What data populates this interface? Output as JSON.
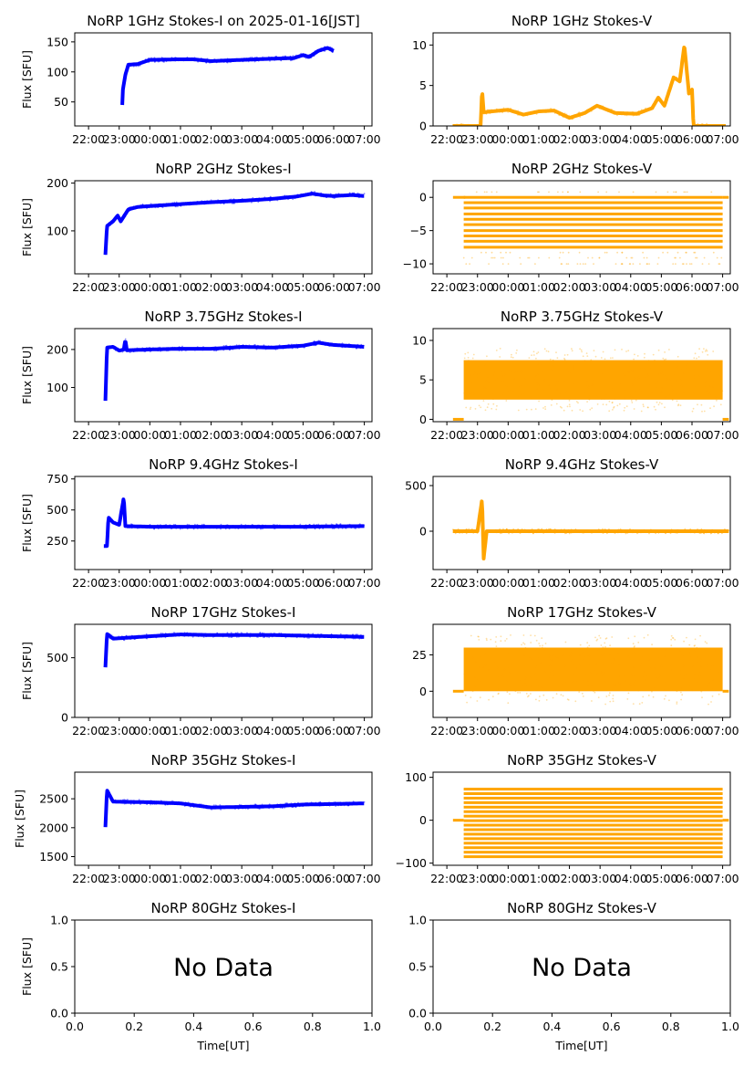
{
  "figure": {
    "x_time_ticks": [
      "22:00",
      "23:00",
      "00:00",
      "01:00",
      "02:00",
      "03:00",
      "04:00",
      "05:00",
      "06:00",
      "07:00"
    ],
    "ylabel": "Flux [SFU]",
    "xlabel_empty_panels": "Time[UT]",
    "no_data_text": "No Data",
    "colors": {
      "stokes_i": "#0000ff",
      "stokes_v": "#ffa500"
    }
  },
  "chart_data": [
    {
      "id": "1ghz-i",
      "type": "scatter",
      "title": "NoRP 1GHz Stokes-I on 2025-01-16[JST]",
      "ylabel": "Flux [SFU]",
      "xlim": [
        21.55,
        31.25
      ],
      "ylim": [
        10,
        165
      ],
      "yticks": [
        50,
        100,
        150
      ],
      "x_range_hours": [
        23.1,
        30.0
      ],
      "series": [
        {
          "name": "Stokes-I",
          "points": [
            [
              23.1,
              45
            ],
            [
              23.12,
              70
            ],
            [
              23.2,
              95
            ],
            [
              23.3,
              112
            ],
            [
              23.6,
              113
            ],
            [
              24.0,
              120
            ],
            [
              25.0,
              121
            ],
            [
              25.4,
              121
            ],
            [
              26.0,
              118
            ],
            [
              27.0,
              120
            ],
            [
              28.0,
              122
            ],
            [
              28.7,
              123
            ],
            [
              29.0,
              128
            ],
            [
              29.2,
              125
            ],
            [
              29.5,
              135
            ],
            [
              29.8,
              140
            ],
            [
              30.0,
              135
            ]
          ]
        }
      ]
    },
    {
      "id": "1ghz-v",
      "type": "scatter",
      "title": "NoRP 1GHz Stokes-V",
      "xlim": [
        21.55,
        31.25
      ],
      "ylim": [
        0,
        11.5
      ],
      "yticks": [
        0,
        5,
        10
      ],
      "series": [
        {
          "name": "Stokes-V",
          "points": [
            [
              22.2,
              0
            ],
            [
              23.1,
              0
            ],
            [
              23.15,
              4.5
            ],
            [
              23.2,
              1.7
            ],
            [
              24.0,
              2.0
            ],
            [
              24.5,
              1.4
            ],
            [
              25.0,
              1.8
            ],
            [
              25.5,
              1.9
            ],
            [
              26.0,
              1.0
            ],
            [
              26.5,
              1.6
            ],
            [
              26.9,
              2.5
            ],
            [
              27.5,
              1.6
            ],
            [
              28.2,
              1.5
            ],
            [
              28.7,
              2.2
            ],
            [
              28.9,
              3.5
            ],
            [
              29.1,
              2.5
            ],
            [
              29.4,
              6.0
            ],
            [
              29.6,
              5.5
            ],
            [
              29.75,
              10
            ],
            [
              29.9,
              4.0
            ],
            [
              30.0,
              4.5
            ],
            [
              30.05,
              0
            ],
            [
              31.1,
              0
            ]
          ]
        }
      ]
    },
    {
      "id": "2ghz-i",
      "type": "scatter",
      "title": "NoRP 2GHz Stokes-I",
      "ylabel": "Flux [SFU]",
      "xlim": [
        21.55,
        31.25
      ],
      "ylim": [
        10,
        205
      ],
      "yticks": [
        100,
        200
      ],
      "series": [
        {
          "name": "Stokes-I",
          "points": [
            [
              22.55,
              50
            ],
            [
              22.6,
              110
            ],
            [
              22.8,
              120
            ],
            [
              22.95,
              132
            ],
            [
              23.05,
              120
            ],
            [
              23.3,
              145
            ],
            [
              23.6,
              150
            ],
            [
              24.0,
              152
            ],
            [
              25.0,
              156
            ],
            [
              26.0,
              160
            ],
            [
              27.0,
              163
            ],
            [
              28.0,
              167
            ],
            [
              28.8,
              172
            ],
            [
              29.3,
              178
            ],
            [
              29.7,
              174
            ],
            [
              30.0,
              173
            ],
            [
              30.6,
              175
            ],
            [
              31.0,
              173
            ]
          ]
        }
      ]
    },
    {
      "id": "2ghz-v",
      "type": "scatter",
      "title": "NoRP 2GHz Stokes-V",
      "xlim": [
        21.55,
        31.25
      ],
      "ylim": [
        -11.5,
        2.5
      ],
      "yticks": [
        -10,
        -5,
        0
      ],
      "series": [
        {
          "name": "Stokes-V",
          "levels": [
            0,
            -0.8,
            -1.6,
            -2.5,
            -3.3,
            -4.1,
            -5.0,
            -5.8,
            -6.6,
            -7.5
          ],
          "x_range_hours": [
            22.55,
            31.0
          ],
          "zero_line_x": [
            [
              22.2,
              22.6
            ],
            [
              31.0,
              31.2
            ]
          ]
        }
      ]
    },
    {
      "id": "375ghz-i",
      "type": "scatter",
      "title": "NoRP 3.75GHz Stokes-I",
      "ylabel": "Flux [SFU]",
      "xlim": [
        21.55,
        31.25
      ],
      "ylim": [
        10,
        255
      ],
      "yticks": [
        100,
        200
      ],
      "series": [
        {
          "name": "Stokes-I",
          "points": [
            [
              22.55,
              65
            ],
            [
              22.6,
              205
            ],
            [
              22.8,
              207
            ],
            [
              23.0,
              197
            ],
            [
              23.15,
              200
            ],
            [
              23.2,
              225
            ],
            [
              23.25,
              198
            ],
            [
              24.0,
              200
            ],
            [
              25.0,
              202
            ],
            [
              26.0,
              202
            ],
            [
              26.5,
              204
            ],
            [
              27.0,
              207
            ],
            [
              28.0,
              205
            ],
            [
              29.0,
              210
            ],
            [
              29.5,
              218
            ],
            [
              30.0,
              212
            ],
            [
              31.0,
              207
            ]
          ]
        }
      ]
    },
    {
      "id": "375ghz-v",
      "type": "scatter",
      "title": "NoRP 3.75GHz Stokes-V",
      "xlim": [
        21.55,
        31.25
      ],
      "ylim": [
        -0.3,
        11.5
      ],
      "yticks": [
        0,
        5,
        10
      ],
      "series": [
        {
          "name": "Stokes-V",
          "band": [
            2.5,
            7.5
          ],
          "x_range_hours": [
            22.55,
            31.0
          ],
          "zero_line_x": [
            [
              22.2,
              22.55
            ],
            [
              31.0,
              31.2
            ]
          ]
        }
      ]
    },
    {
      "id": "94ghz-i",
      "type": "scatter",
      "title": "NoRP 9.4GHz Stokes-I",
      "ylabel": "Flux [SFU]",
      "xlim": [
        21.55,
        31.25
      ],
      "ylim": [
        20,
        770
      ],
      "yticks": [
        250,
        500,
        750
      ],
      "series": [
        {
          "name": "Stokes-I",
          "points": [
            [
              22.5,
              210
            ],
            [
              22.6,
              210
            ],
            [
              22.65,
              440
            ],
            [
              22.8,
              400
            ],
            [
              23.0,
              380
            ],
            [
              23.15,
              600
            ],
            [
              23.2,
              370
            ],
            [
              24.0,
              365
            ],
            [
              25.0,
              365
            ],
            [
              26.0,
              365
            ],
            [
              27.0,
              365
            ],
            [
              28.0,
              365
            ],
            [
              29.0,
              365
            ],
            [
              30.0,
              368
            ],
            [
              31.0,
              370
            ]
          ]
        }
      ]
    },
    {
      "id": "94ghz-v",
      "type": "scatter",
      "title": "NoRP 9.4GHz Stokes-V",
      "xlim": [
        21.55,
        31.25
      ],
      "ylim": [
        -420,
        600
      ],
      "yticks": [
        0,
        500
      ],
      "series": [
        {
          "name": "Stokes-V",
          "points": [
            [
              22.2,
              0
            ],
            [
              23.0,
              0
            ],
            [
              23.15,
              350
            ],
            [
              23.2,
              -300
            ],
            [
              23.3,
              0
            ],
            [
              31.2,
              0
            ]
          ]
        }
      ]
    },
    {
      "id": "17ghz-i",
      "type": "scatter",
      "title": "NoRP 17GHz Stokes-I",
      "ylabel": "Flux [SFU]",
      "xlim": [
        21.55,
        31.25
      ],
      "ylim": [
        0,
        780
      ],
      "yticks": [
        0,
        500
      ],
      "series": [
        {
          "name": "Stokes-I",
          "points": [
            [
              22.55,
              420
            ],
            [
              22.6,
              700
            ],
            [
              22.8,
              660
            ],
            [
              24.0,
              680
            ],
            [
              25.0,
              695
            ],
            [
              26.0,
              690
            ],
            [
              27.0,
              690
            ],
            [
              28.0,
              690
            ],
            [
              29.0,
              685
            ],
            [
              30.0,
              680
            ],
            [
              31.0,
              675
            ]
          ]
        }
      ]
    },
    {
      "id": "17ghz-v",
      "type": "scatter",
      "title": "NoRP 17GHz Stokes-V",
      "xlim": [
        21.55,
        31.25
      ],
      "ylim": [
        -18,
        46
      ],
      "yticks": [
        0,
        25
      ],
      "series": [
        {
          "name": "Stokes-V",
          "band": [
            0,
            30
          ],
          "x_range_hours": [
            22.55,
            31.0
          ],
          "zero_line_x": [
            [
              22.2,
              22.55
            ],
            [
              31.0,
              31.2
            ]
          ]
        }
      ]
    },
    {
      "id": "35ghz-i",
      "type": "scatter",
      "title": "NoRP 35GHz Stokes-I",
      "ylabel": "Flux [SFU]",
      "xlim": [
        21.55,
        31.25
      ],
      "ylim": [
        1350,
        2960
      ],
      "yticks": [
        1500,
        2000,
        2500
      ],
      "series": [
        {
          "name": "Stokes-I",
          "points": [
            [
              22.55,
              2010
            ],
            [
              22.6,
              2650
            ],
            [
              22.8,
              2450
            ],
            [
              24.0,
              2440
            ],
            [
              25.0,
              2420
            ],
            [
              26.0,
              2350
            ],
            [
              27.0,
              2360
            ],
            [
              28.0,
              2370
            ],
            [
              29.0,
              2400
            ],
            [
              30.0,
              2410
            ],
            [
              31.0,
              2420
            ]
          ]
        }
      ]
    },
    {
      "id": "35ghz-v",
      "type": "scatter",
      "title": "NoRP 35GHz Stokes-V",
      "xlim": [
        21.55,
        31.25
      ],
      "ylim": [
        -105,
        112
      ],
      "yticks": [
        -100,
        0,
        100
      ],
      "series": [
        {
          "name": "Stokes-V",
          "level_step": 10.5,
          "level_range": [
            -85,
            82
          ],
          "x_range_hours": [
            22.55,
            31.0
          ],
          "zero_line_x": [
            [
              22.2,
              22.55
            ],
            [
              31.0,
              31.2
            ]
          ]
        }
      ]
    },
    {
      "id": "80ghz-i",
      "type": "empty",
      "title": "NoRP 80GHz Stokes-I",
      "ylabel": "Flux [SFU]",
      "xlabel": "Time[UT]",
      "xlim": [
        0,
        1
      ],
      "ylim": [
        0,
        1
      ],
      "xticks": [
        "0.0",
        "0.2",
        "0.4",
        "0.6",
        "0.8",
        "1.0"
      ],
      "yticks": [
        "0.0",
        "0.5",
        "1.0"
      ],
      "annotation": "No Data"
    },
    {
      "id": "80ghz-v",
      "type": "empty",
      "title": "NoRP 80GHz Stokes-V",
      "xlabel": "Time[UT]",
      "xlim": [
        0,
        1
      ],
      "ylim": [
        0,
        1
      ],
      "xticks": [
        "0.0",
        "0.2",
        "0.4",
        "0.6",
        "0.8",
        "1.0"
      ],
      "yticks": [
        "0.0",
        "0.5",
        "1.0"
      ],
      "annotation": "No Data"
    }
  ]
}
